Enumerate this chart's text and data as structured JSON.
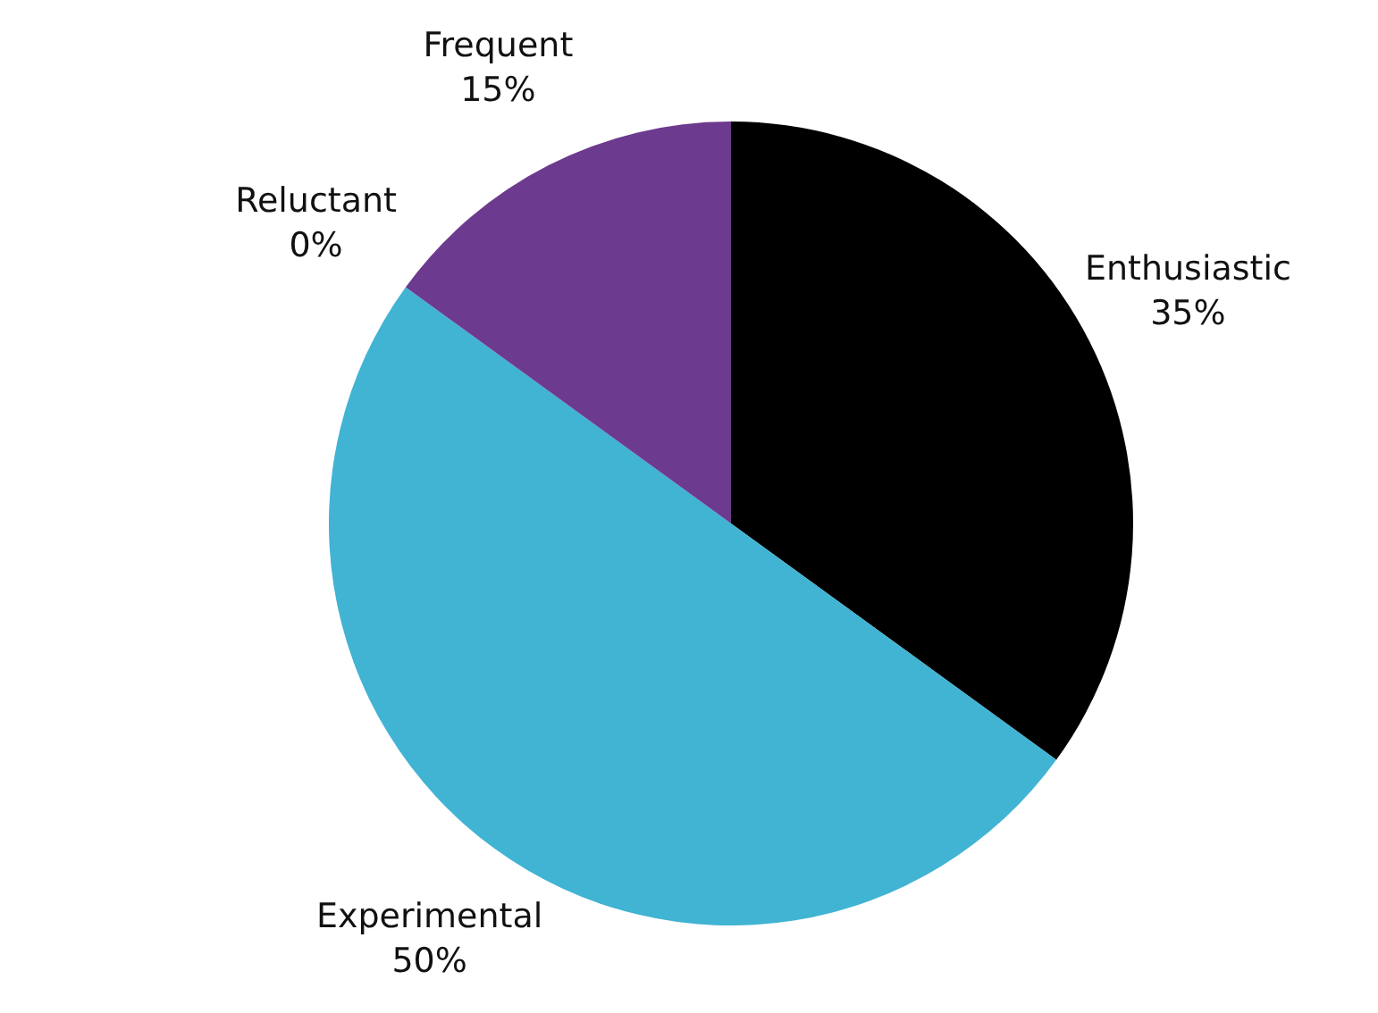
{
  "chart_data": {
    "type": "pie",
    "categories": [
      "Enthusiastic",
      "Experimental",
      "Reluctant",
      "Frequent"
    ],
    "values": [
      35,
      50,
      0,
      15
    ],
    "value_labels": [
      "35%",
      "50%",
      "0%",
      "15%"
    ],
    "colors": [
      "#000000",
      "#41b3d3",
      "#9e9e9e",
      "#6c3a8e"
    ],
    "legend": false
  }
}
